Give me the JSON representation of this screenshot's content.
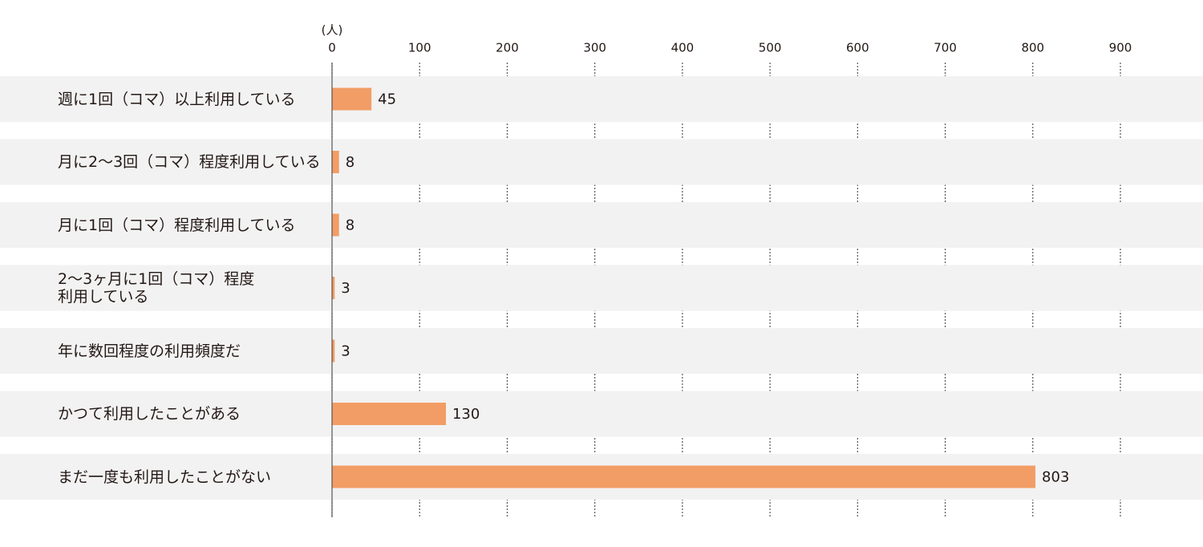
{
  "chart_data": {
    "type": "bar",
    "orientation": "horizontal",
    "axis_unit": "(人)",
    "categories": [
      "週に1回（コマ）以上利用している",
      "月に2〜3回（コマ）程度利用している",
      "月に1回（コマ）程度利用している",
      "2〜3ヶ月に1回（コマ）程度\n利用している",
      "年に数回程度の利用頻度だ",
      "かつて利用したことがある",
      "まだ一度も利用したことがない"
    ],
    "values": [
      45,
      8,
      8,
      3,
      3,
      130,
      803
    ],
    "color": "#f29d65",
    "xlim": [
      0,
      900
    ],
    "xticks": [
      0,
      100,
      200,
      300,
      400,
      500,
      600,
      700,
      800,
      900
    ],
    "grid": true
  }
}
